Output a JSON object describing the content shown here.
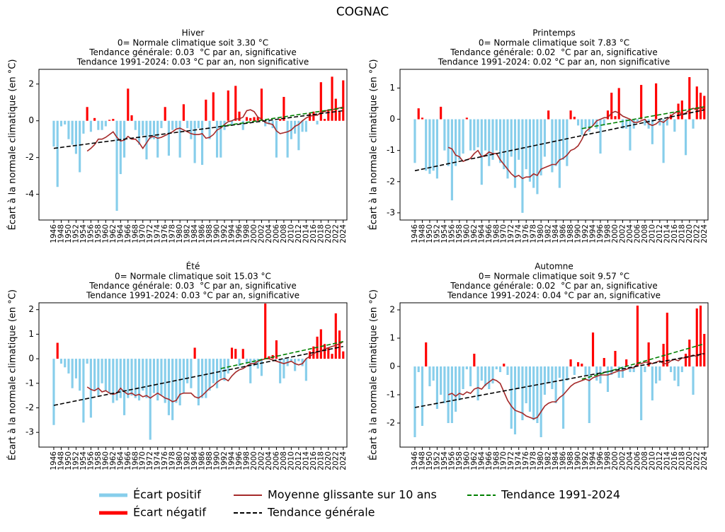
{
  "title": "COGNAC",
  "legend": [
    {
      "name": "Écart positif",
      "color": "#87ceeb"
    },
    {
      "name": "Écart négatif",
      "color": "#ff0000"
    },
    {
      "name": "Moyenne glissante sur 10 ans",
      "color": "#a52a2a"
    },
    {
      "name": "Tendance générale",
      "color": "#000000",
      "dashed": true
    },
    {
      "name": "Tendance 1991-2024",
      "color": "#008000",
      "dashed": true
    }
  ],
  "chart_data": [
    {
      "type": "bar",
      "title": "Hiver",
      "subtitle": [
        "0= Normale climatique soit 3.30 °C",
        "Tendance générale: 0.03  °C par an, significative",
        "Tendance 1991-2024: 0.03 °C par an, non significative"
      ],
      "ylabel": "Écart à la normale climatique (en °C)",
      "x": [
        1946,
        1947,
        1948,
        1949,
        1950,
        1951,
        1952,
        1953,
        1954,
        1955,
        1956,
        1957,
        1958,
        1959,
        1960,
        1961,
        1962,
        1963,
        1964,
        1965,
        1966,
        1967,
        1968,
        1969,
        1970,
        1971,
        1972,
        1973,
        1974,
        1975,
        1976,
        1977,
        1978,
        1979,
        1980,
        1981,
        1982,
        1983,
        1984,
        1985,
        1986,
        1987,
        1988,
        1989,
        1990,
        1991,
        1992,
        1993,
        1994,
        1995,
        1996,
        1997,
        1998,
        1999,
        2000,
        2001,
        2002,
        2003,
        2004,
        2005,
        2006,
        2007,
        2008,
        2009,
        2010,
        2011,
        2012,
        2013,
        2014,
        2015,
        2016,
        2017,
        2018,
        2019,
        2020,
        2021,
        2022,
        2023,
        2024
      ],
      "values": [
        -1.4,
        -3.6,
        -0.3,
        -0.2,
        -1.0,
        -1.3,
        -1.8,
        -2.8,
        -0.7,
        0.75,
        -0.6,
        0.15,
        -0.5,
        -0.5,
        -0.3,
        0.05,
        0.1,
        -4.9,
        -2.9,
        -2.0,
        1.75,
        0.3,
        -0.5,
        -1.3,
        -0.8,
        -2.1,
        -1.0,
        -1.0,
        -2.0,
        -0.4,
        0.75,
        -1.9,
        -0.5,
        -0.4,
        -2.0,
        0.9,
        -0.4,
        -1.0,
        -2.3,
        -0.4,
        -2.4,
        1.15,
        -1.0,
        1.55,
        -2.0,
        -2.0,
        -0.5,
        1.65,
        -0.2,
        1.9,
        0.5,
        -0.5,
        0.2,
        0.15,
        0.2,
        0.2,
        1.75,
        -0.3,
        -0.2,
        -0.4,
        -2.0,
        0.1,
        1.3,
        -2.0,
        -1.0,
        -0.7,
        -1.6,
        -0.6,
        -0.6,
        0.4,
        0.5,
        -0.2,
        2.1,
        0.1,
        0.6,
        2.4,
        1.2,
        0.5,
        2.2
      ],
      "moving_average": [
        null,
        null,
        null,
        null,
        null,
        null,
        null,
        null,
        null,
        -1.65,
        -1.5,
        -1.3,
        -1.0,
        -1.0,
        -0.9,
        -0.75,
        -0.6,
        -0.9,
        -1.1,
        -1.05,
        -0.85,
        -1.0,
        -1.0,
        -1.2,
        -1.5,
        -1.2,
        -0.9,
        -0.85,
        -0.95,
        -0.9,
        -0.8,
        -0.7,
        -0.6,
        -0.45,
        -0.4,
        -0.5,
        -0.6,
        -0.7,
        -0.75,
        -0.75,
        -0.7,
        -0.95,
        -0.9,
        -0.75,
        -0.5,
        -0.4,
        -0.2,
        -0.05,
        0.0,
        0.1,
        0.1,
        0.2,
        0.55,
        0.6,
        0.5,
        0.2,
        0.1,
        -0.1,
        -0.15,
        -0.2,
        -0.55,
        -0.7,
        -0.65,
        -0.6,
        -0.5,
        -0.3,
        -0.2,
        0.0,
        0.15,
        0.25,
        0.3,
        0.3,
        0.45,
        0.5,
        0.6,
        0.6,
        0.65,
        0.7,
        0.75
      ],
      "trend": {
        "x": [
          1946,
          2024
        ],
        "values": [
          -1.5,
          0.55
        ]
      },
      "trend_1991_2024": {
        "x": [
          1991,
          2024
        ],
        "values": [
          -0.3,
          0.7
        ]
      },
      "xlim": [
        1942,
        2025
      ],
      "xticks": [
        1946,
        1948,
        1950,
        1952,
        1954,
        1956,
        1958,
        1960,
        1962,
        1964,
        1966,
        1968,
        1970,
        1972,
        1974,
        1976,
        1978,
        1980,
        1982,
        1984,
        1986,
        1988,
        1990,
        1992,
        1994,
        1996,
        1998,
        2000,
        2002,
        2004,
        2006,
        2008,
        2010,
        2012,
        2014,
        2016,
        2018,
        2020,
        2022,
        2024
      ],
      "ylim": [
        -5.4,
        2.8
      ],
      "yticks": [
        -4,
        -2,
        0,
        2
      ]
    },
    {
      "type": "bar",
      "title": "Printemps",
      "subtitle": [
        "0= Normale climatique soit 7.83 °C",
        "Tendance générale: 0.02  °C par an, significative",
        "Tendance 1991-2024: 0.02 °C par an, non significative"
      ],
      "ylabel": "Écart à la normale climatique (en °C)",
      "x": [
        1946,
        1947,
        1948,
        1949,
        1950,
        1951,
        1952,
        1953,
        1954,
        1955,
        1956,
        1957,
        1958,
        1959,
        1960,
        1961,
        1962,
        1963,
        1964,
        1965,
        1966,
        1967,
        1968,
        1969,
        1970,
        1971,
        1972,
        1973,
        1974,
        1975,
        1976,
        1977,
        1978,
        1979,
        1980,
        1981,
        1982,
        1983,
        1984,
        1985,
        1986,
        1987,
        1988,
        1989,
        1990,
        1991,
        1992,
        1993,
        1994,
        1995,
        1996,
        1997,
        1998,
        1999,
        2000,
        2001,
        2002,
        2003,
        2004,
        2005,
        2006,
        2007,
        2008,
        2009,
        2010,
        2011,
        2012,
        2013,
        2014,
        2015,
        2016,
        2017,
        2018,
        2019,
        2020,
        2021,
        2022,
        2023,
        2024
      ],
      "values": [
        -1.4,
        0.35,
        0.05,
        -1.65,
        -1.75,
        -1.65,
        -1.9,
        0.4,
        -1.0,
        -1.5,
        -2.6,
        -1.5,
        -1.3,
        -1.1,
        0.05,
        -1.0,
        -1.0,
        -0.9,
        -2.1,
        -1.0,
        -1.5,
        -1.3,
        -1.0,
        -1.4,
        -1.6,
        -1.9,
        -1.2,
        -2.2,
        -1.3,
        -3.0,
        -1.6,
        -2.0,
        -2.2,
        -2.4,
        -1.8,
        -1.2,
        0.28,
        -1.7,
        -1.5,
        -2.2,
        -1.3,
        -1.5,
        0.28,
        0.08,
        -0.2,
        -0.5,
        -0.3,
        -0.4,
        -0.2,
        -0.3,
        -1.1,
        -0.2,
        0.28,
        0.85,
        0.1,
        1.0,
        -0.3,
        -0.3,
        -1.0,
        -0.3,
        -0.1,
        1.1,
        -0.2,
        -0.3,
        -0.8,
        1.15,
        -0.2,
        -1.4,
        -0.2,
        0.15,
        -0.4,
        0.5,
        0.6,
        -1.15,
        1.35,
        -0.3,
        1.05,
        0.85,
        0.75
      ],
      "moving_average": [
        null,
        null,
        null,
        null,
        null,
        null,
        null,
        null,
        null,
        -0.9,
        -0.95,
        -1.15,
        -1.2,
        -1.35,
        -1.3,
        -1.25,
        -1.1,
        -1.0,
        -1.2,
        -1.15,
        -1.05,
        -1.1,
        -1.1,
        -1.3,
        -1.45,
        -1.6,
        -1.75,
        -1.85,
        -1.8,
        -1.9,
        -1.85,
        -1.85,
        -1.75,
        -1.8,
        -1.6,
        -1.55,
        -1.5,
        -1.45,
        -1.45,
        -1.3,
        -1.25,
        -1.15,
        -1.0,
        -0.95,
        -0.85,
        -0.65,
        -0.4,
        -0.3,
        -0.2,
        -0.05,
        0.0,
        0.05,
        0.05,
        0.2,
        0.25,
        0.2,
        0.1,
        0.05,
        0.0,
        -0.1,
        -0.1,
        -0.05,
        0.0,
        -0.15,
        -0.2,
        -0.15,
        -0.05,
        -0.1,
        0.0,
        0.1,
        0.2,
        0.25,
        0.15,
        0.2,
        0.3,
        0.35,
        0.3,
        0.4,
        0.3
      ],
      "trend": {
        "x": [
          1946,
          2024
        ],
        "values": [
          -1.65,
          0.3
        ]
      },
      "trend_1991_2024": {
        "x": [
          1991,
          2024
        ],
        "values": [
          -0.3,
          0.4
        ]
      },
      "xlim": [
        1942,
        2025
      ],
      "xticks": [
        1946,
        1948,
        1950,
        1952,
        1954,
        1956,
        1958,
        1960,
        1962,
        1964,
        1966,
        1968,
        1970,
        1972,
        1974,
        1976,
        1978,
        1980,
        1982,
        1984,
        1986,
        1988,
        1990,
        1992,
        1994,
        1996,
        1998,
        2000,
        2002,
        2004,
        2006,
        2008,
        2010,
        2012,
        2014,
        2016,
        2018,
        2020,
        2022,
        2024
      ],
      "ylim": [
        -3.23,
        1.6
      ],
      "yticks": [
        -3,
        -2,
        -1,
        0,
        1
      ]
    },
    {
      "type": "bar",
      "title": "Été",
      "subtitle": [
        "0= Normale climatique soit 15.03 °C",
        "Tendance générale: 0.03  °C par an, significative",
        "Tendance 1991-2024: 0.03 °C par an, significative"
      ],
      "ylabel": "Écart à la normale climatique (en °C)",
      "x": [
        1946,
        1947,
        1948,
        1949,
        1950,
        1951,
        1952,
        1953,
        1954,
        1955,
        1956,
        1957,
        1958,
        1959,
        1960,
        1961,
        1962,
        1963,
        1964,
        1965,
        1966,
        1967,
        1968,
        1969,
        1970,
        1971,
        1972,
        1973,
        1974,
        1975,
        1976,
        1977,
        1978,
        1979,
        1980,
        1981,
        1982,
        1983,
        1984,
        1985,
        1986,
        1987,
        1988,
        1989,
        1990,
        1991,
        1992,
        1993,
        1994,
        1995,
        1996,
        1997,
        1998,
        1999,
        2000,
        2001,
        2002,
        2003,
        2004,
        2005,
        2006,
        2007,
        2008,
        2009,
        2010,
        2011,
        2012,
        2013,
        2014,
        2015,
        2016,
        2017,
        2018,
        2019,
        2020,
        2021,
        2022,
        2023,
        2024
      ],
      "values": [
        -2.7,
        0.65,
        -0.2,
        -0.35,
        -0.6,
        -1.2,
        -0.8,
        -1.3,
        -2.6,
        -0.2,
        -2.4,
        -1.3,
        -1.5,
        -1.0,
        -1.3,
        -1.4,
        -1.8,
        -1.7,
        -1.6,
        -2.3,
        -1.6,
        -1.5,
        -1.6,
        -1.7,
        -1.3,
        -1.6,
        -3.3,
        -1.4,
        -1.7,
        -1.5,
        -1.8,
        -2.3,
        -2.5,
        -1.8,
        -1.9,
        -1.4,
        -1.0,
        -1.2,
        0.45,
        -1.9,
        -1.6,
        -1.6,
        -1.3,
        -1.0,
        -1.2,
        -0.8,
        -0.9,
        -0.6,
        0.45,
        0.4,
        -0.3,
        0.4,
        -0.2,
        -1.0,
        -0.3,
        -0.4,
        -0.7,
        2.25,
        0.1,
        0.15,
        0.75,
        -1.0,
        -0.8,
        -0.3,
        -0.1,
        -0.5,
        -0.1,
        -0.3,
        -0.9,
        0.3,
        0.5,
        0.9,
        1.2,
        0.6,
        0.45,
        0.2,
        1.85,
        1.15,
        0.3
      ],
      "moving_average": [
        null,
        null,
        null,
        null,
        null,
        null,
        null,
        null,
        null,
        -1.15,
        -1.25,
        -1.3,
        -1.2,
        -1.35,
        -1.3,
        -1.4,
        -1.45,
        -1.4,
        -1.2,
        -1.35,
        -1.45,
        -1.4,
        -1.5,
        -1.45,
        -1.55,
        -1.5,
        -1.6,
        -1.5,
        -1.4,
        -1.5,
        -1.6,
        -1.65,
        -1.75,
        -1.7,
        -1.45,
        -1.4,
        -1.4,
        -1.4,
        -1.55,
        -1.6,
        -1.5,
        -1.35,
        -1.2,
        -1.1,
        -0.95,
        -0.85,
        -0.8,
        -0.9,
        -0.7,
        -0.55,
        -0.45,
        -0.4,
        -0.3,
        -0.2,
        -0.2,
        -0.1,
        -0.05,
        0.0,
        0.0,
        -0.05,
        -0.1,
        -0.15,
        -0.2,
        -0.15,
        -0.1,
        -0.2,
        -0.25,
        -0.2,
        0.0,
        0.1,
        0.2,
        0.3,
        0.3,
        0.4,
        0.45,
        0.5,
        0.55,
        0.6,
        0.7
      ],
      "trend": {
        "x": [
          1946,
          2024
        ],
        "values": [
          -1.9,
          0.5
        ]
      },
      "trend_1991_2024": {
        "x": [
          1991,
          2024
        ],
        "values": [
          -0.4,
          0.7
        ]
      },
      "xlim": [
        1942,
        2025
      ],
      "xticks": [
        1946,
        1948,
        1950,
        1952,
        1954,
        1956,
        1958,
        1960,
        1962,
        1964,
        1966,
        1968,
        1970,
        1972,
        1974,
        1976,
        1978,
        1980,
        1982,
        1984,
        1986,
        1988,
        1990,
        1992,
        1994,
        1996,
        1998,
        2000,
        2002,
        2004,
        2006,
        2008,
        2010,
        2012,
        2014,
        2016,
        2018,
        2020,
        2022,
        2024
      ],
      "ylim": [
        -3.6,
        2.28
      ],
      "yticks": [
        -3,
        -2,
        -1,
        0,
        1,
        2
      ]
    },
    {
      "type": "bar",
      "title": "Automne",
      "subtitle": [
        "0= Normale climatique soit 9.57 °C",
        "Tendance générale: 0.02  °C par an, significative",
        "Tendance 1991-2024: 0.04 °C par an, significative"
      ],
      "ylabel": "Écart à la normale climatique (en °C)",
      "x": [
        1946,
        1947,
        1948,
        1949,
        1950,
        1951,
        1952,
        1953,
        1954,
        1955,
        1956,
        1957,
        1958,
        1959,
        1960,
        1961,
        1962,
        1963,
        1964,
        1965,
        1966,
        1967,
        1968,
        1969,
        1970,
        1971,
        1972,
        1973,
        1974,
        1975,
        1976,
        1977,
        1978,
        1979,
        1980,
        1981,
        1982,
        1983,
        1984,
        1985,
        1986,
        1987,
        1988,
        1989,
        1990,
        1991,
        1992,
        1993,
        1994,
        1995,
        1996,
        1997,
        1998,
        1999,
        2000,
        2001,
        2002,
        2003,
        2004,
        2005,
        2006,
        2007,
        2008,
        2009,
        2010,
        2011,
        2012,
        2013,
        2014,
        2015,
        2016,
        2017,
        2018,
        2019,
        2020,
        2021,
        2022,
        2023,
        2024
      ],
      "values": [
        -2.5,
        -0.2,
        -2.1,
        0.85,
        -0.7,
        -0.5,
        -1.5,
        -1.0,
        -1.3,
        -2.0,
        -2.0,
        -1.6,
        -1.2,
        -0.8,
        -0.1,
        -0.7,
        0.45,
        -1.2,
        -0.5,
        -0.7,
        -0.8,
        -0.6,
        -0.1,
        -0.2,
        0.1,
        -0.3,
        -2.2,
        -2.4,
        -0.8,
        -1.9,
        -1.3,
        -1.6,
        -1.9,
        -2.0,
        -2.5,
        -1.0,
        -0.6,
        -0.8,
        -1.3,
        -0.4,
        -2.2,
        -0.5,
        0.25,
        -0.3,
        0.15,
        0.1,
        -0.3,
        -2.0,
        1.2,
        -0.5,
        -0.6,
        0.3,
        -0.9,
        -0.3,
        0.55,
        -0.4,
        -0.4,
        0.25,
        -0.2,
        -0.2,
        2.15,
        -1.9,
        -0.2,
        0.85,
        -1.2,
        -0.6,
        -0.5,
        0.8,
        1.9,
        -0.2,
        -0.5,
        -0.7,
        -0.2,
        0.45,
        0.95,
        -1.0,
        2.05,
        2.15,
        1.15
      ],
      "moving_average": [
        null,
        null,
        null,
        null,
        null,
        null,
        null,
        null,
        null,
        -1.0,
        -0.95,
        -1.05,
        -0.95,
        -1.0,
        -0.9,
        -0.95,
        -0.8,
        -0.75,
        -0.8,
        -0.65,
        -0.55,
        -0.45,
        -0.5,
        -0.6,
        -0.9,
        -1.2,
        -1.4,
        -1.55,
        -1.6,
        -1.65,
        -1.75,
        -1.8,
        -1.85,
        -1.8,
        -1.6,
        -1.4,
        -1.3,
        -1.25,
        -1.25,
        -1.1,
        -1.0,
        -0.85,
        -0.7,
        -0.6,
        -0.55,
        -0.5,
        -0.45,
        -0.5,
        -0.4,
        -0.35,
        -0.3,
        -0.3,
        -0.3,
        -0.25,
        -0.2,
        -0.15,
        -0.15,
        -0.1,
        -0.05,
        -0.05,
        0.1,
        0.1,
        0.15,
        0.15,
        0.1,
        0.15,
        0.2,
        0.1,
        0.1,
        0.2,
        0.25,
        0.2,
        0.3,
        0.3,
        0.35,
        0.4,
        0.35,
        0.45,
        0.45
      ],
      "trend": {
        "x": [
          1946,
          2024
        ],
        "values": [
          -1.45,
          0.45
        ]
      },
      "trend_1991_2024": {
        "x": [
          1991,
          2024
        ],
        "values": [
          -0.45,
          0.8
        ]
      },
      "xlim": [
        1942,
        2025
      ],
      "xticks": [
        1946,
        1948,
        1950,
        1952,
        1954,
        1956,
        1958,
        1960,
        1962,
        1964,
        1966,
        1968,
        1970,
        1972,
        1974,
        1976,
        1978,
        1980,
        1982,
        1984,
        1986,
        1988,
        1990,
        1992,
        1994,
        1996,
        1998,
        2000,
        2002,
        2004,
        2006,
        2008,
        2010,
        2012,
        2014,
        2016,
        2018,
        2020,
        2022,
        2024
      ],
      "ylim": [
        -2.85,
        2.25
      ],
      "yticks": [
        -2,
        -1,
        0,
        1,
        2
      ]
    }
  ]
}
